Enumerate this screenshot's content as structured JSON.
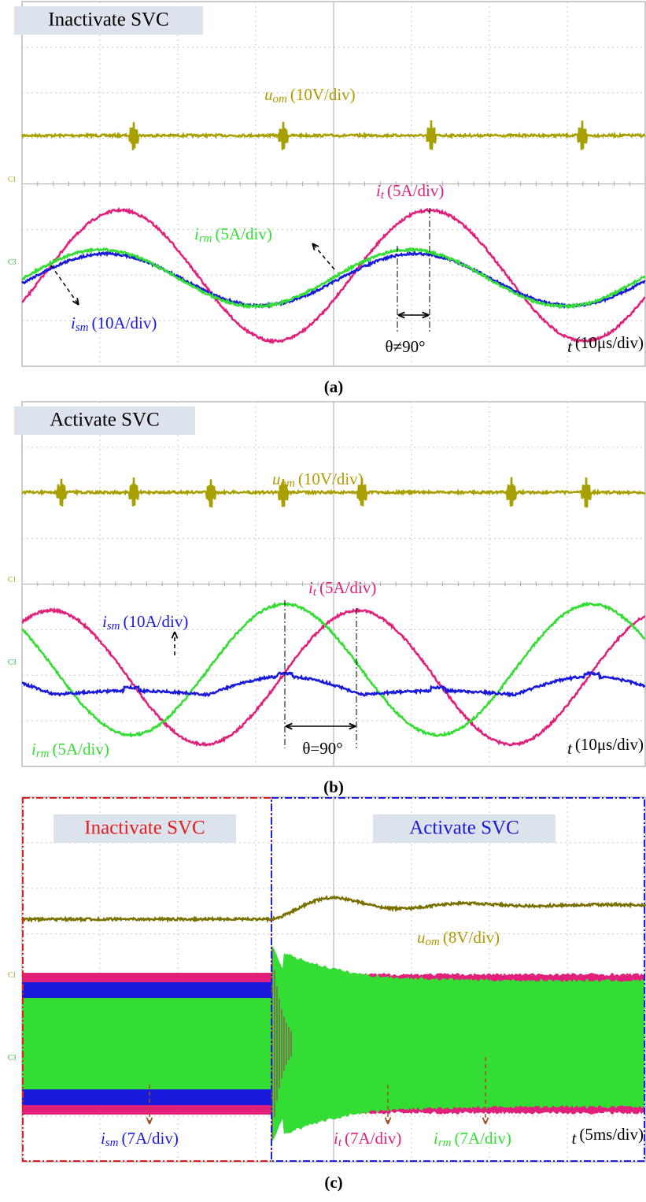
{
  "panels": [
    {
      "title": "Inactivate SVC",
      "channels": [
        "C1",
        "C3"
      ],
      "traces": {
        "u_om": {
          "symbol": "u",
          "subscript": "om",
          "scale": "(10V/div)"
        },
        "i_t": {
          "symbol": "i",
          "subscript": "t",
          "scale": "(5A/div)"
        },
        "i_rm": {
          "symbol": "i",
          "subscript": "rm",
          "scale": "(5A/div)"
        },
        "i_sm": {
          "symbol": "i",
          "subscript": "sm",
          "scale": "(10A/div)"
        }
      },
      "angle": "θ≠90°",
      "time": {
        "symbol": "t",
        "scale": "(10μs/div)"
      },
      "caption": "(a)"
    },
    {
      "title": "Activate SVC",
      "channels": [
        "C1",
        "C3"
      ],
      "traces": {
        "u_om": {
          "symbol": "u",
          "subscript": "om",
          "scale": "(10V/div)"
        },
        "i_t": {
          "symbol": "i",
          "subscript": "t",
          "scale": "(5A/div)"
        },
        "i_sm": {
          "symbol": "i",
          "subscript": "sm",
          "scale": "(10A/div)"
        },
        "i_rm": {
          "symbol": "i",
          "subscript": "rm",
          "scale": "(5A/div)"
        }
      },
      "angle": "θ=90°",
      "time": {
        "symbol": "t",
        "scale": "(10μs/div)"
      },
      "caption": "(b)"
    },
    {
      "titles": [
        "Inactivate SVC",
        "Activate SVC"
      ],
      "channels": [
        "C1",
        "C3"
      ],
      "traces": {
        "u_om": {
          "symbol": "u",
          "subscript": "om",
          "scale": "(8V/div)"
        },
        "i_sm": {
          "symbol": "i",
          "subscript": "sm",
          "scale": "(7A/div)"
        },
        "i_t": {
          "symbol": "i",
          "subscript": "t",
          "scale": "(7A/div)"
        },
        "i_rm": {
          "symbol": "i",
          "subscript": "rm",
          "scale": "(7A/div)"
        }
      },
      "time": {
        "symbol": "t",
        "scale": "(5ms/div)"
      },
      "caption": "(c)"
    }
  ]
}
